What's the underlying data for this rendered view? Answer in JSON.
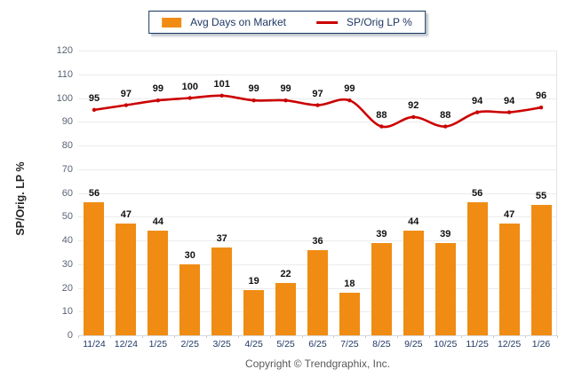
{
  "legend": {
    "bar_label": "Avg Days on Market",
    "line_label": "SP/Orig LP %"
  },
  "footer": {
    "copyright": "Copyright © Trendgraphix, Inc."
  },
  "colors": {
    "bar": "#F08C13",
    "line": "#CC0000",
    "grid": "#EBEBEB",
    "xlabel_text": "#1F3864",
    "ytick_text": "#5A6275",
    "data_label": "#111111",
    "legend_border": "#17375E",
    "legend_text": "#1F3864"
  },
  "chart_data": {
    "type": "combo",
    "categories": [
      "11/24",
      "12/24",
      "1/25",
      "2/25",
      "3/25",
      "4/25",
      "5/25",
      "6/25",
      "7/25",
      "8/25",
      "9/25",
      "10/25",
      "11/25",
      "12/25",
      "1/26"
    ],
    "series": [
      {
        "name": "Avg Days on Market",
        "type": "bar",
        "color": "#F08C13",
        "values": [
          56,
          47,
          44,
          30,
          37,
          19,
          22,
          36,
          18,
          39,
          44,
          39,
          56,
          47,
          55
        ]
      },
      {
        "name": "SP/Orig LP %",
        "type": "line",
        "color": "#CC0000",
        "values": [
          95,
          97,
          99,
          100,
          101,
          99,
          99,
          97,
          99,
          88,
          92,
          88,
          94,
          94,
          96
        ]
      }
    ],
    "title": "",
    "xlabel": "",
    "ylabel": "SP/Orig. LP %",
    "ylim": [
      0,
      120
    ],
    "ytick_step": 10,
    "grid": true,
    "legend_position": "top",
    "data_labels": true
  }
}
